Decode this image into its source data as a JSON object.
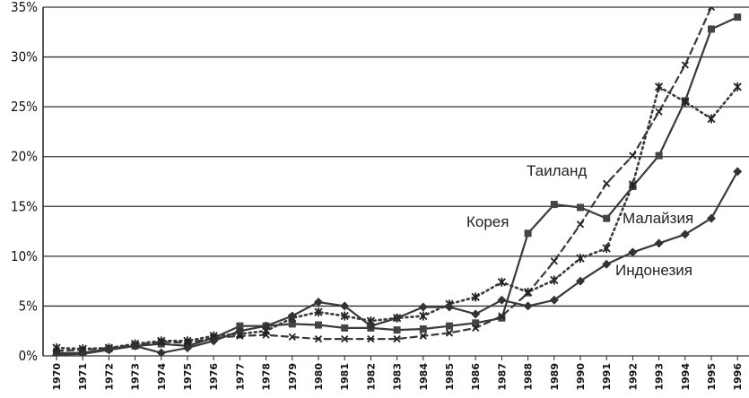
{
  "chart_data": {
    "type": "line",
    "title": "",
    "xlabel": "",
    "ylabel": "",
    "x": [
      "1970",
      "1971",
      "1972",
      "1973",
      "1974",
      "1975",
      "1976",
      "1977",
      "1978",
      "1979",
      "1980",
      "1981",
      "1982",
      "1983",
      "1984",
      "1985",
      "1986",
      "1987",
      "1988",
      "1989",
      "1990",
      "1991",
      "1992",
      "1993",
      "1994",
      "1995",
      "1996"
    ],
    "ylim": [
      0,
      35
    ],
    "yticks": [
      0,
      5,
      10,
      15,
      20,
      25,
      30,
      35
    ],
    "ytick_labels": [
      "0%",
      "5%",
      "10%",
      "15%",
      "20%",
      "25%",
      "30%",
      "35%"
    ],
    "grid": true,
    "legend": "none",
    "series": [
      {
        "name": "Корея",
        "color": "#3a3a3a",
        "style": "solid",
        "marker": "square",
        "values": [
          0.3,
          0.3,
          0.7,
          1.0,
          1.2,
          1.0,
          1.8,
          3.0,
          3.0,
          3.2,
          3.1,
          2.8,
          2.8,
          2.6,
          2.7,
          3.0,
          3.3,
          3.8,
          12.3,
          15.2,
          14.9,
          13.8,
          17.0,
          20.1,
          25.6,
          32.8,
          34.0
        ]
      },
      {
        "name": "Таиланд",
        "color": "#3a3a3a",
        "style": "dashed",
        "marker": "x",
        "values": [
          0.5,
          0.6,
          0.8,
          1.1,
          1.4,
          1.3,
          1.8,
          2.0,
          2.1,
          1.9,
          1.7,
          1.7,
          1.7,
          1.7,
          2.0,
          2.3,
          2.8,
          4.0,
          6.3,
          9.5,
          13.2,
          17.3,
          20.1,
          24.5,
          29.2,
          35.0,
          36.5
        ]
      },
      {
        "name": "Малайзия",
        "color": "#3a3a3a",
        "style": "dotted",
        "marker": "star",
        "values": [
          0.8,
          0.7,
          0.8,
          1.2,
          1.5,
          1.5,
          2.0,
          2.2,
          2.5,
          3.8,
          4.4,
          4.0,
          3.5,
          3.8,
          4.0,
          5.2,
          5.9,
          7.4,
          6.4,
          7.6,
          9.8,
          10.8,
          17.2,
          27.0,
          25.5,
          23.8,
          27.0
        ]
      },
      {
        "name": "Индонезия",
        "color": "#3a3a3a",
        "style": "solid",
        "marker": "diamond",
        "values": [
          0.1,
          0.2,
          0.6,
          1.0,
          0.3,
          0.8,
          1.5,
          2.5,
          3.0,
          4.0,
          5.4,
          5.0,
          3.0,
          3.8,
          4.9,
          4.9,
          4.2,
          5.6,
          5.0,
          5.6,
          7.5,
          9.2,
          10.4,
          11.3,
          12.2,
          13.8,
          18.5
        ]
      }
    ],
    "annotations": [
      {
        "text": "Таиланд",
        "series": "Таиланд"
      },
      {
        "text": "Корея",
        "series": "Корея"
      },
      {
        "text": "Малайзия",
        "series": "Малайзия"
      },
      {
        "text": "Индонезия",
        "series": "Индонезия"
      }
    ]
  }
}
